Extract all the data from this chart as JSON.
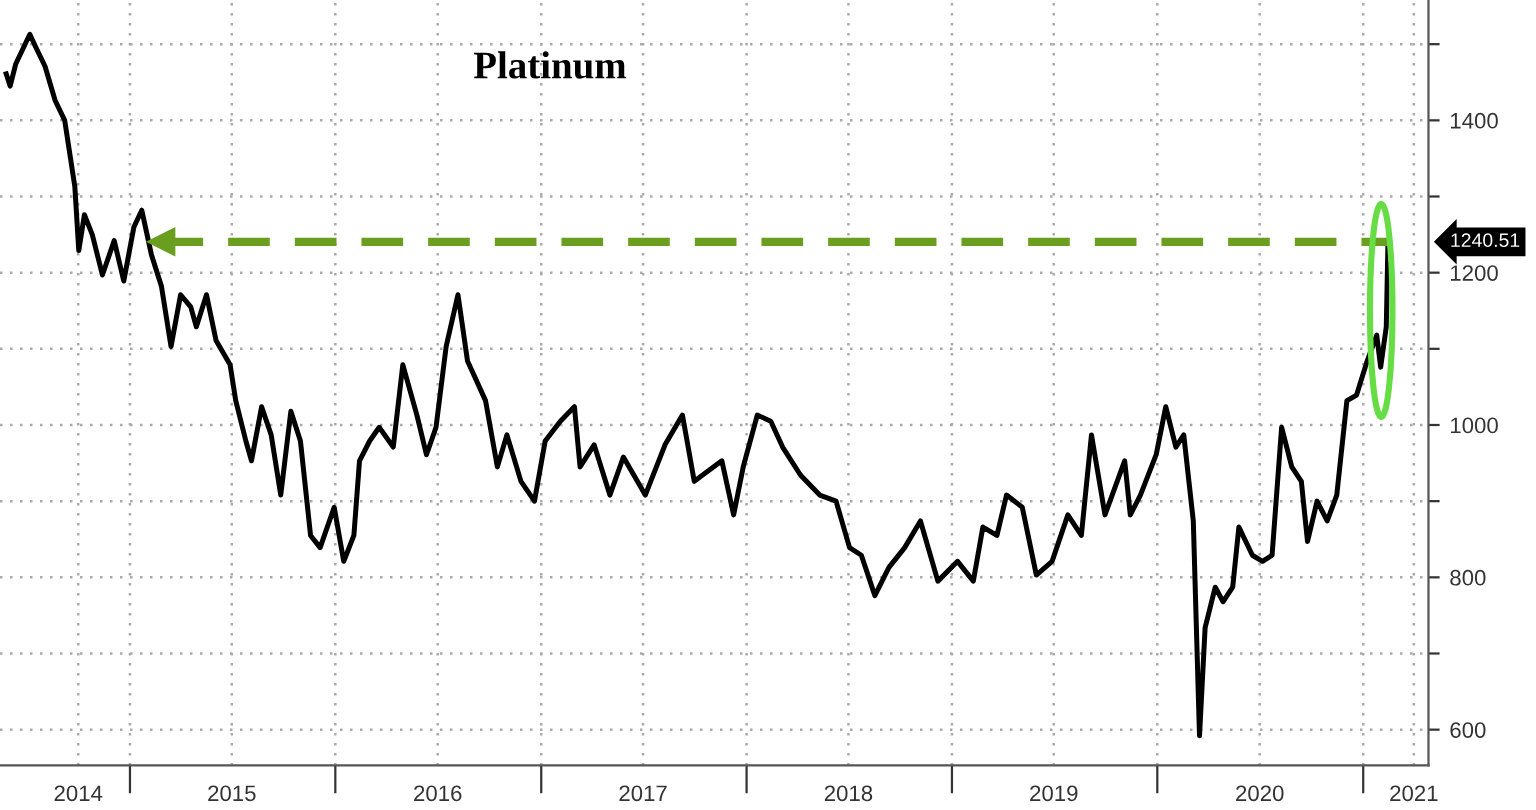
{
  "chart_data": {
    "type": "line",
    "title": "Platinum",
    "x": [
      "2014-05-26",
      "2014-06-02",
      "2014-06-12",
      "2014-07-07",
      "2014-07-17",
      "2014-08-03",
      "2014-08-21",
      "2014-09-07",
      "2014-09-25",
      "2014-10-02",
      "2014-10-12",
      "2014-10-26",
      "2014-11-13",
      "2014-12-04",
      "2014-12-21",
      "2015-01-08",
      "2015-01-22",
      "2015-02-08",
      "2015-02-26",
      "2015-03-15",
      "2015-04-01",
      "2015-04-19",
      "2015-04-29",
      "2015-05-17",
      "2015-06-03",
      "2015-06-28",
      "2015-07-08",
      "2015-07-26",
      "2015-08-05",
      "2015-08-23",
      "2015-09-09",
      "2015-09-26",
      "2015-10-14",
      "2015-10-31",
      "2015-11-18",
      "2015-12-05",
      "2015-12-30",
      "2016-01-16",
      "2016-02-03",
      "2016-02-13",
      "2016-03-02",
      "2016-03-19",
      "2016-04-13",
      "2016-04-30",
      "2016-05-25",
      "2016-06-11",
      "2016-06-28",
      "2016-07-16",
      "2016-08-06",
      "2016-08-23",
      "2016-09-24",
      "2016-10-15",
      "2016-11-01",
      "2016-11-26",
      "2016-12-20",
      "2017-01-08",
      "2017-02-04",
      "2017-03-01",
      "2017-03-11",
      "2017-04-05",
      "2017-05-03",
      "2017-05-27",
      "2017-07-05",
      "2017-08-09",
      "2017-09-09",
      "2017-09-30",
      "2017-11-18",
      "2017-12-09",
      "2017-12-26",
      "2018-01-20",
      "2018-02-13",
      "2018-03-06",
      "2018-04-07",
      "2018-05-11",
      "2018-06-09",
      "2018-07-03",
      "2018-07-24",
      "2018-08-17",
      "2018-09-11",
      "2018-10-09",
      "2018-11-06",
      "2018-12-07",
      "2019-01-11",
      "2019-02-08",
      "2019-02-25",
      "2019-03-22",
      "2019-04-08",
      "2019-05-06",
      "2019-05-31",
      "2019-06-28",
      "2019-07-26",
      "2019-08-19",
      "2019-09-06",
      "2019-09-30",
      "2019-11-04",
      "2019-11-14",
      "2019-12-02",
      "2019-12-30",
      "2020-01-16",
      "2020-02-03",
      "2020-02-17",
      "2020-03-05",
      "2020-03-16",
      "2020-03-26",
      "2020-04-13",
      "2020-04-27",
      "2020-05-14",
      "2020-05-25",
      "2020-06-18",
      "2020-07-06",
      "2020-07-23",
      "2020-08-09",
      "2020-08-27",
      "2020-09-13",
      "2020-09-24",
      "2020-10-11",
      "2020-10-29",
      "2020-11-15",
      "2020-12-03",
      "2020-12-20",
      "2021-01-08",
      "2021-01-25",
      "2021-02-01",
      "2021-02-11",
      "2021-02-14"
    ],
    "series": [
      {
        "color": "#000000",
        "values": [
          1461,
          1445,
          1474,
          1513,
          1497,
          1471,
          1426,
          1400,
          1313,
          1229,
          1276,
          1250,
          1197,
          1242,
          1189,
          1260,
          1282,
          1224,
          1182,
          1103,
          1171,
          1155,
          1129,
          1171,
          1111,
          1079,
          1032,
          979,
          953,
          1024,
          987,
          908,
          1018,
          979,
          855,
          839,
          892,
          821,
          855,
          953,
          979,
          997,
          971,
          1079,
          1013,
          961,
          997,
          1103,
          1171,
          1084,
          1032,
          945,
          987,
          926,
          900,
          979,
          1005,
          1024,
          945,
          974,
          908,
          958,
          908,
          974,
          1013,
          926,
          953,
          882,
          945,
          1013,
          1005,
          971,
          934,
          908,
          900,
          839,
          829,
          776,
          813,
          839,
          874,
          795,
          821,
          795,
          866,
          855,
          908,
          892,
          803,
          821,
          882,
          855,
          987,
          882,
          953,
          882,
          908,
          961,
          1024,
          971,
          987,
          874,
          592,
          734,
          787,
          768,
          787,
          866,
          829,
          821,
          829,
          997,
          945,
          926,
          847,
          900,
          874,
          908,
          1032,
          1039,
          1084,
          1118,
          1076,
          1129,
          1240.51
        ]
      },
      {
        "type": "line",
        "color": "#6a9e1f",
        "line_style": "dashed",
        "marker": "triangle",
        "x": [
          "2015-02-26",
          "2021-02-14"
        ],
        "values": [
          1240.51,
          1240.51
        ]
      }
    ],
    "annotations": [
      "1240.51"
    ],
    "xlim": [
      "2014-05-15",
      "2021-04-27"
    ],
    "xticks": [
      {
        "value": "2014-10-01",
        "label": "2014"
      },
      {
        "value": "2015-01-01",
        "label": null
      },
      {
        "value": "2015-07-01",
        "label": "2015"
      },
      {
        "value": "2016-01-01",
        "label": null
      },
      {
        "value": "2016-07-01",
        "label": "2016"
      },
      {
        "value": "2017-01-01",
        "label": null
      },
      {
        "value": "2017-07-01",
        "label": "2017"
      },
      {
        "value": "2018-01-01",
        "label": null
      },
      {
        "value": "2018-07-01",
        "label": "2018"
      },
      {
        "value": "2019-01-01",
        "label": null
      },
      {
        "value": "2019-07-01",
        "label": "2019"
      },
      {
        "value": "2020-01-01",
        "label": null
      },
      {
        "value": "2020-07-01",
        "label": "2020"
      },
      {
        "value": "2021-01-01",
        "label": null
      },
      {
        "value": "2021-04-01",
        "label": "2021"
      }
    ],
    "ylim": [
      553,
      1558
    ],
    "yticks": [
      600,
      {
        "value": 700,
        "label": null
      },
      800,
      {
        "value": 900,
        "label": null
      },
      1000,
      {
        "value": 1100,
        "label": null
      },
      1200,
      {
        "value": 1300,
        "label": null
      },
      1400,
      {
        "value": 1500,
        "label": null
      }
    ],
    "grid": true,
    "legend": false,
    "marker": "none",
    "line_style": "solid"
  }
}
